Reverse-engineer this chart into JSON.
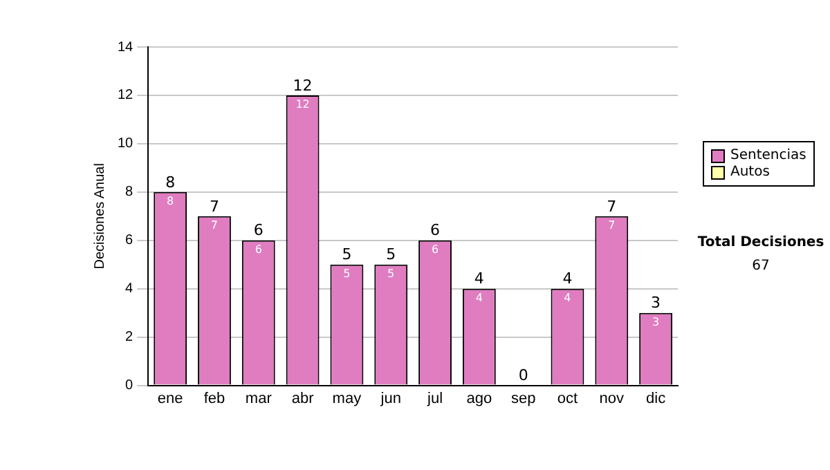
{
  "chart_data": {
    "type": "bar",
    "ylabel": "Decisiones Anual",
    "categories": [
      "ene",
      "feb",
      "mar",
      "abr",
      "may",
      "jun",
      "jul",
      "ago",
      "sep",
      "oct",
      "nov",
      "dic"
    ],
    "series": [
      {
        "name": "Sentencias",
        "color": "#e07cc0",
        "values": [
          8,
          7,
          6,
          12,
          5,
          5,
          6,
          4,
          0,
          4,
          7,
          3
        ],
        "value_labels": [
          "8",
          "7",
          "6",
          "12",
          "5",
          "5",
          "6",
          "4",
          null,
          "4",
          "7",
          "3"
        ]
      },
      {
        "name": "Autos",
        "color": "#ffffaa",
        "values": [
          0,
          0,
          0,
          0,
          0,
          0,
          0,
          0,
          0,
          0,
          0,
          0
        ]
      }
    ],
    "stacked": true,
    "totals": [
      "8",
      "7",
      "6",
      "12",
      "5",
      "5",
      "6",
      "4",
      "0",
      "4",
      "7",
      "3"
    ],
    "ylim": [
      0,
      14
    ],
    "yticks": [
      0,
      2,
      4,
      6,
      8,
      10,
      12,
      14
    ],
    "grid": "y",
    "legend": "right",
    "annotations": [
      "Total Decisiones",
      "67"
    ]
  }
}
